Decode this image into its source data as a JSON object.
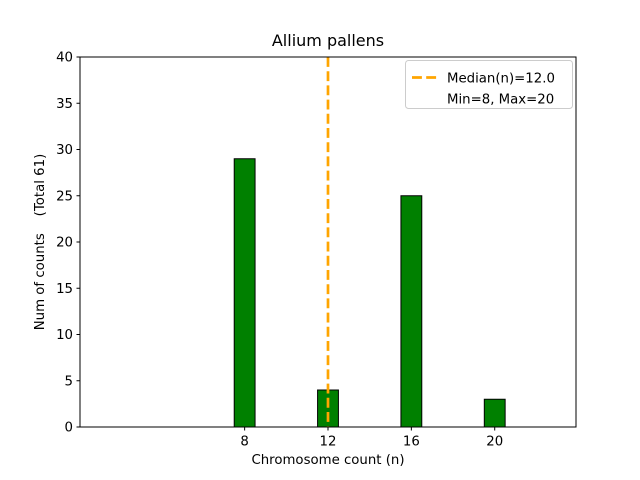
{
  "figure": {
    "background_color": "#ffffff"
  },
  "chart_data": {
    "type": "bar",
    "title": "Allium pallens",
    "xlabel": "Chromosome count (n)",
    "ylabel": "Num of counts    (Total 61)",
    "categories": [
      8,
      12,
      16,
      20
    ],
    "values": [
      29,
      4,
      25,
      3
    ],
    "total": 61,
    "bar_color": "#008000",
    "bar_edge_color": "#000000",
    "bar_width_units": 1.0,
    "xlim": [
      0.1,
      23.9
    ],
    "ylim": [
      0,
      40
    ],
    "xticks": [
      8,
      12,
      16,
      20
    ],
    "yticks": [
      0,
      5,
      10,
      15,
      20,
      25,
      30,
      35,
      40
    ],
    "grid": false,
    "median_line": {
      "x": 12,
      "color": "#FFA500",
      "style": "dashed",
      "label": "Median(n)=12.0"
    },
    "legend": {
      "position": "upper right",
      "border_color": "#cccccc",
      "entries": [
        {
          "label": "Median(n)=12.0",
          "handle": "dashed-line",
          "handle_color": "#FFA500"
        },
        {
          "label": "Min=8, Max=20",
          "handle": "none",
          "handle_color": ""
        }
      ]
    }
  }
}
